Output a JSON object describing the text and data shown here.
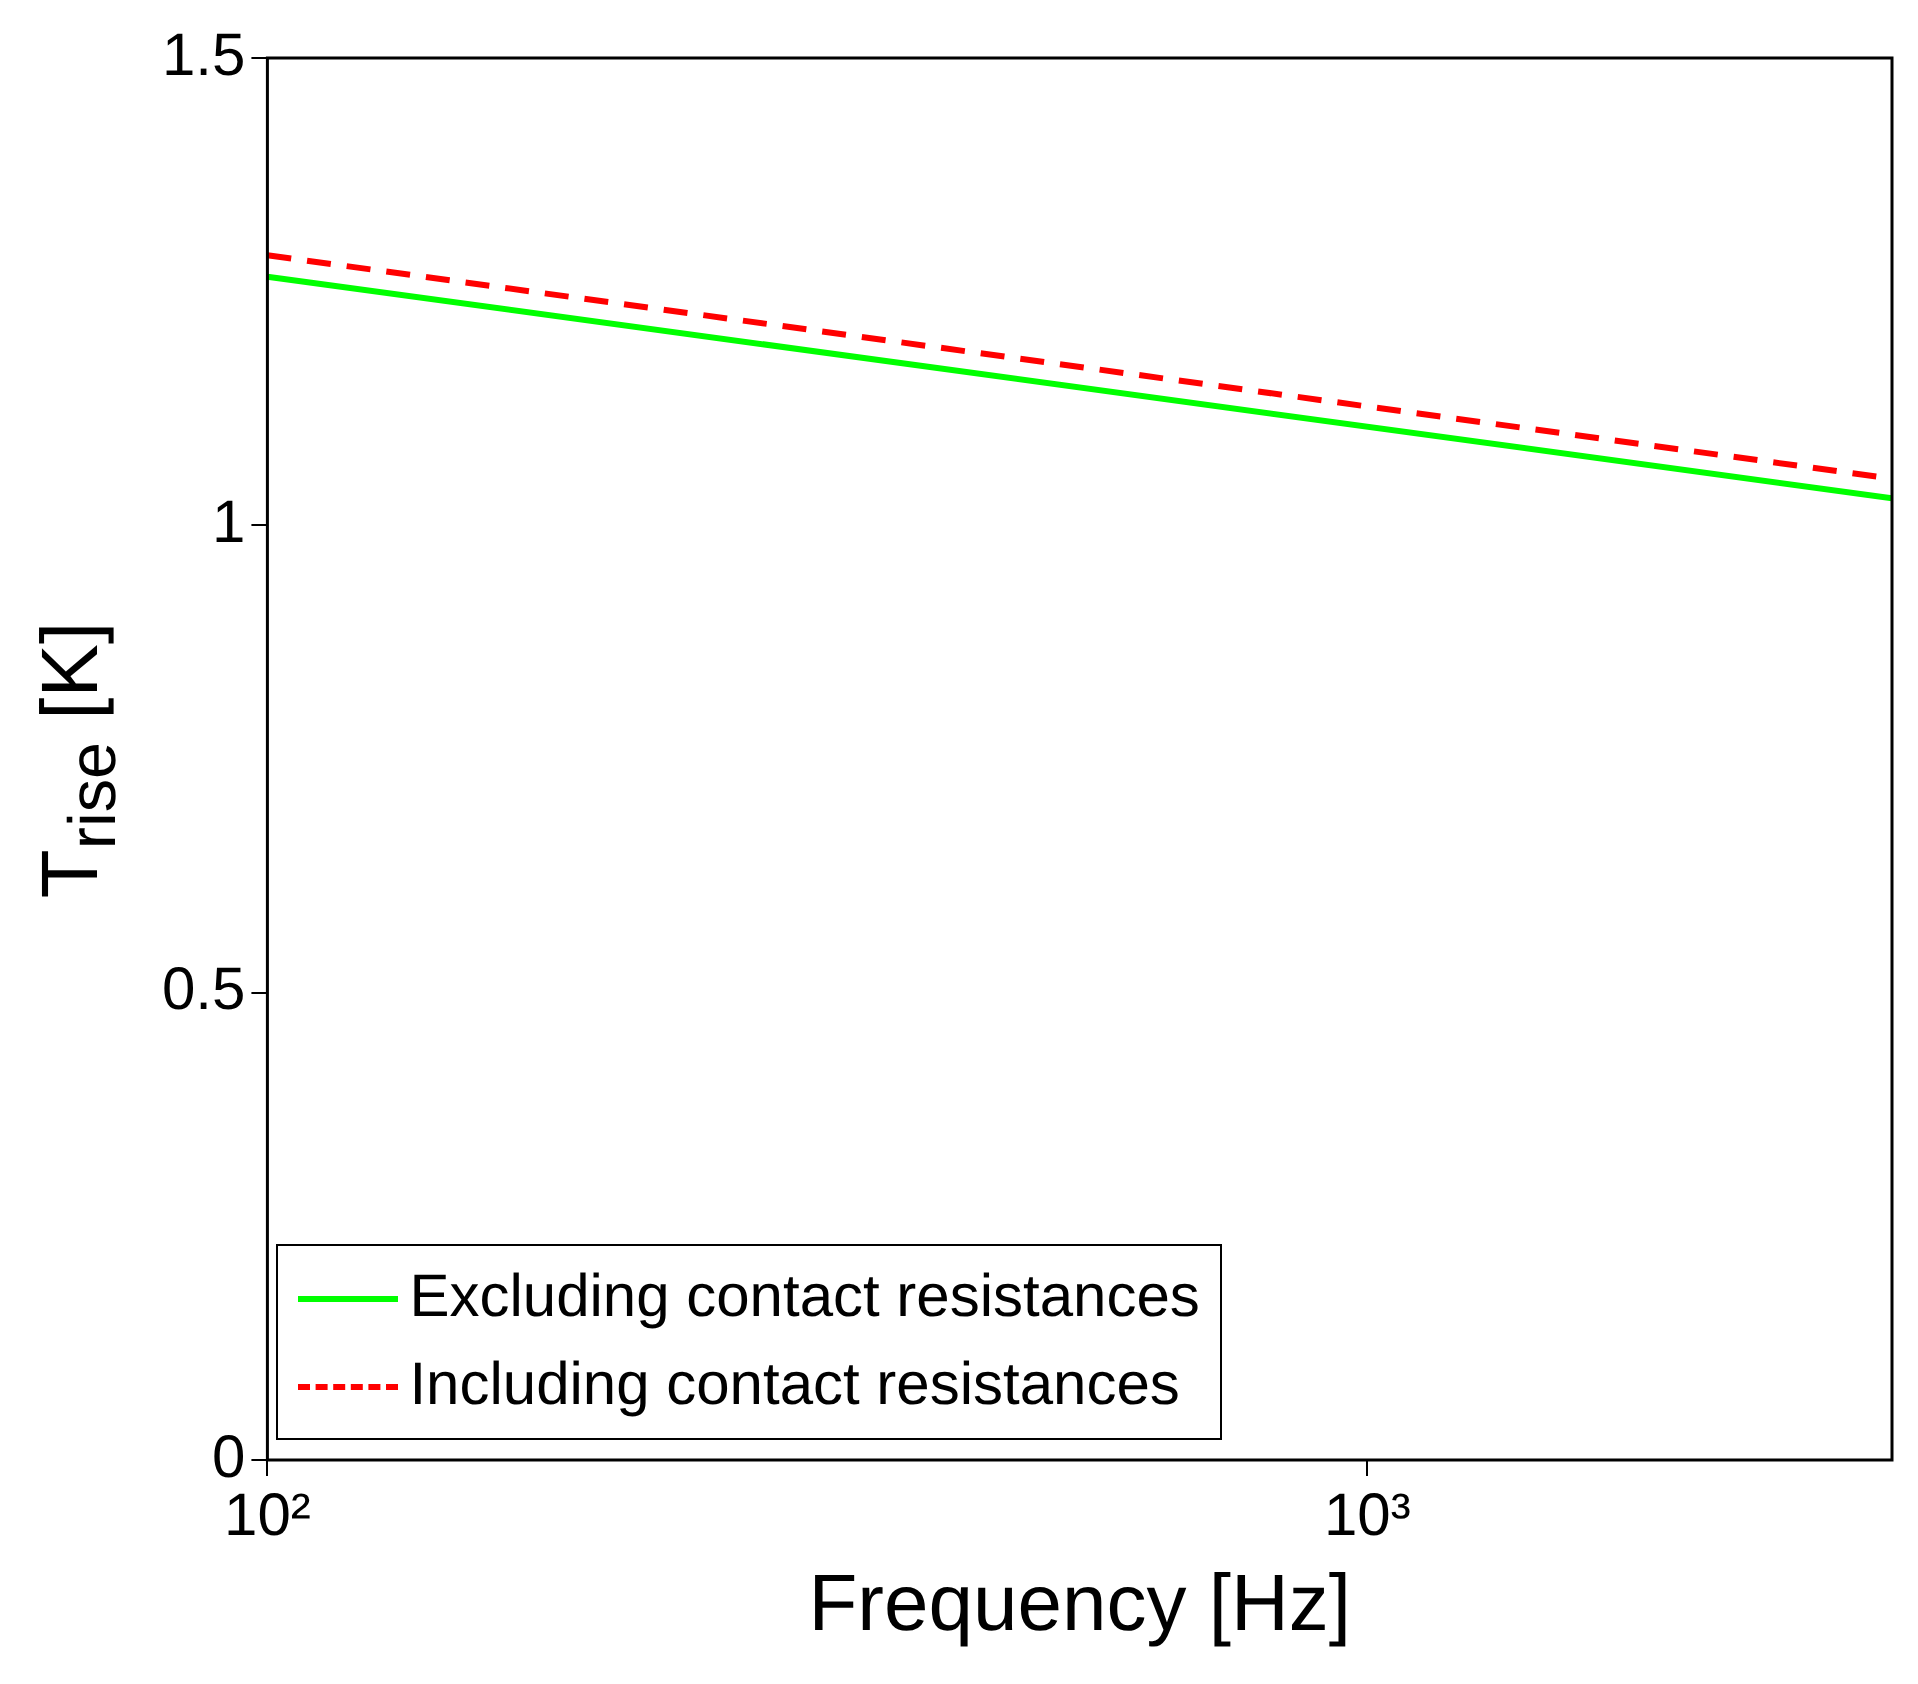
{
  "chart_data": {
    "type": "line",
    "xlabel": "Frequency [Hz]",
    "ylabel": "T$_{rise}$ [K]",
    "log": "x",
    "xlim": [
      100,
      3000
    ],
    "ylim": [
      0,
      1.5
    ],
    "xticks": [
      {
        "value": 100,
        "label": "10²"
      },
      {
        "value": 1000,
        "label": "10³"
      }
    ],
    "yticks": [
      0,
      0.5,
      1,
      1.5
    ],
    "x": [
      100,
      3000
    ],
    "series": [
      {
        "name": "Excluding contact resistances",
        "color": "#00ff00",
        "values": [
          1.266,
          1.029
        ],
        "line_style": "solid"
      },
      {
        "name": "Including contact resistances",
        "color": "#ff0000",
        "values": [
          1.289,
          1.05
        ],
        "line_style": "dashed"
      }
    ],
    "legend": "bottom left",
    "grid": false,
    "marker": "none"
  }
}
